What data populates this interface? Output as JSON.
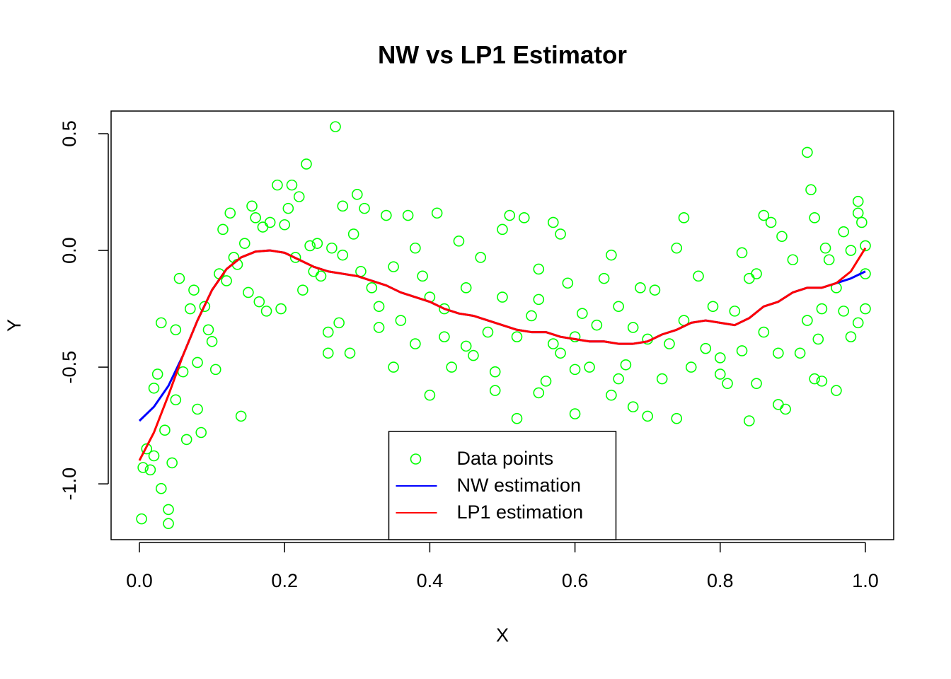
{
  "chart_data": {
    "type": "scatter",
    "title": "NW vs LP1 Estimator",
    "xlabel": "X",
    "ylabel": "Y",
    "xlim": [
      -0.039,
      1.039
    ],
    "ylim": [
      -1.239,
      0.597
    ],
    "xticks": [
      {
        "value": 0,
        "label": "0.0"
      },
      0.2,
      0.4,
      0.6,
      0.8,
      {
        "value": 1,
        "label": "1.0"
      }
    ],
    "yticks": [
      {
        "value": -1,
        "label": "-1.0"
      },
      -0.5,
      {
        "value": 0,
        "label": "0.0"
      },
      0.5
    ],
    "legend": "bottom",
    "series": [
      {
        "name": "Data points",
        "type": "scatter",
        "color": "#00ff00",
        "x": [
          0.003,
          0.005,
          0.01,
          0.015,
          0.02,
          0.02,
          0.025,
          0.03,
          0.03,
          0.035,
          0.04,
          0.04,
          0.045,
          0.05,
          0.05,
          0.055,
          0.06,
          0.065,
          0.07,
          0.075,
          0.08,
          0.08,
          0.085,
          0.09,
          0.095,
          0.1,
          0.105,
          0.11,
          0.115,
          0.12,
          0.125,
          0.13,
          0.135,
          0.14,
          0.145,
          0.15,
          0.155,
          0.16,
          0.165,
          0.17,
          0.175,
          0.18,
          0.19,
          0.195,
          0.2,
          0.205,
          0.21,
          0.215,
          0.22,
          0.225,
          0.23,
          0.235,
          0.24,
          0.245,
          0.25,
          0.26,
          0.265,
          0.27,
          0.275,
          0.28,
          0.29,
          0.295,
          0.3,
          0.305,
          0.31,
          0.32,
          0.33,
          0.34,
          0.35,
          0.36,
          0.37,
          0.38,
          0.39,
          0.4,
          0.41,
          0.42,
          0.43,
          0.44,
          0.45,
          0.46,
          0.47,
          0.48,
          0.49,
          0.5,
          0.51,
          0.52,
          0.53,
          0.54,
          0.55,
          0.56,
          0.57,
          0.58,
          0.59,
          0.6,
          0.61,
          0.62,
          0.63,
          0.64,
          0.65,
          0.66,
          0.67,
          0.68,
          0.69,
          0.7,
          0.71,
          0.72,
          0.73,
          0.74,
          0.75,
          0.76,
          0.77,
          0.78,
          0.79,
          0.8,
          0.81,
          0.82,
          0.83,
          0.84,
          0.85,
          0.86,
          0.87,
          0.88,
          0.89,
          0.9,
          0.91,
          0.92,
          0.93,
          0.94,
          0.95,
          0.96,
          0.97,
          0.98,
          0.99,
          1.0,
          0.52,
          0.55,
          0.6,
          0.65,
          0.57,
          0.58,
          0.66,
          0.7,
          0.74,
          0.75,
          0.83,
          0.86,
          0.885,
          0.92,
          0.925,
          0.93,
          0.935,
          0.94,
          0.945,
          0.96,
          0.97,
          0.98,
          0.99,
          0.99,
          0.995,
          1.0,
          1.0,
          0.5,
          0.49,
          0.4,
          0.38,
          0.33,
          0.35,
          0.28,
          0.26,
          0.45,
          0.42,
          0.55,
          0.6,
          0.68,
          0.8,
          0.84,
          0.85,
          0.88
        ],
        "values": [
          -1.15,
          -0.93,
          -0.85,
          -0.94,
          -0.59,
          -0.88,
          -0.53,
          -0.31,
          -1.02,
          -0.77,
          -1.17,
          -1.11,
          -0.91,
          -0.34,
          -0.64,
          -0.12,
          -0.52,
          -0.81,
          -0.25,
          -0.17,
          -0.48,
          -0.68,
          -0.78,
          -0.24,
          -0.34,
          -0.39,
          -0.51,
          -0.1,
          0.09,
          -0.13,
          0.16,
          -0.03,
          -0.06,
          -0.71,
          0.03,
          -0.18,
          0.19,
          0.14,
          -0.22,
          0.1,
          -0.26,
          0.12,
          0.28,
          -0.25,
          0.11,
          0.18,
          0.28,
          -0.03,
          0.23,
          -0.17,
          0.37,
          0.02,
          -0.09,
          0.03,
          -0.11,
          -0.35,
          0.01,
          0.53,
          -0.31,
          -0.02,
          -0.44,
          0.07,
          0.24,
          -0.09,
          0.18,
          -0.16,
          -0.24,
          0.15,
          -0.07,
          -0.3,
          0.15,
          -0.4,
          -0.11,
          -0.2,
          0.16,
          -0.25,
          -0.5,
          0.04,
          -0.16,
          -0.45,
          -0.03,
          -0.35,
          -0.52,
          -0.2,
          0.15,
          -0.37,
          0.14,
          -0.28,
          -0.08,
          -0.56,
          -0.4,
          -0.44,
          -0.14,
          -0.51,
          -0.27,
          -0.5,
          -0.32,
          -0.12,
          -0.62,
          -0.24,
          -0.49,
          -0.33,
          -0.16,
          -0.38,
          -0.17,
          -0.55,
          -0.4,
          -0.72,
          -0.3,
          -0.5,
          -0.11,
          -0.42,
          -0.24,
          -0.53,
          -0.57,
          -0.26,
          -0.43,
          -0.12,
          -0.1,
          -0.35,
          0.12,
          -0.44,
          -0.68,
          -0.04,
          -0.44,
          -0.3,
          -0.55,
          -0.25,
          -0.04,
          -0.6,
          -0.26,
          0.0,
          -0.31,
          -0.1,
          -0.72,
          -0.61,
          -0.7,
          -0.02,
          0.12,
          0.07,
          -0.55,
          -0.71,
          0.01,
          0.14,
          -0.01,
          0.15,
          0.06,
          0.42,
          0.26,
          0.14,
          -0.38,
          -0.56,
          0.01,
          -0.16,
          0.08,
          -0.37,
          0.21,
          0.16,
          0.12,
          -0.25,
          0.02,
          0.09,
          -0.6,
          -0.62,
          0.01,
          -0.33,
          -0.5,
          0.19,
          -0.44,
          -0.41,
          -0.37,
          -0.21,
          -0.37,
          -0.67,
          -0.46,
          -0.73,
          -0.57,
          -0.66
        ]
      },
      {
        "name": "NW estimation",
        "type": "line",
        "color": "#0000ff",
        "x": [
          0,
          0.02,
          0.04,
          0.06,
          0.08,
          0.1,
          0.12,
          0.14,
          0.16,
          0.18,
          0.2,
          0.22,
          0.24,
          0.26,
          0.28,
          0.3,
          0.32,
          0.34,
          0.36,
          0.38,
          0.4,
          0.42,
          0.44,
          0.46,
          0.48,
          0.5,
          0.52,
          0.54,
          0.56,
          0.58,
          0.6,
          0.62,
          0.64,
          0.66,
          0.68,
          0.7,
          0.72,
          0.74,
          0.76,
          0.78,
          0.8,
          0.82,
          0.84,
          0.86,
          0.88,
          0.9,
          0.92,
          0.94,
          0.96,
          0.98,
          1.0
        ],
        "values": [
          -0.73,
          -0.67,
          -0.58,
          -0.45,
          -0.3,
          -0.17,
          -0.08,
          -0.03,
          -0.005,
          0,
          -0.01,
          -0.04,
          -0.07,
          -0.09,
          -0.1,
          -0.11,
          -0.13,
          -0.15,
          -0.18,
          -0.2,
          -0.22,
          -0.25,
          -0.27,
          -0.28,
          -0.3,
          -0.32,
          -0.34,
          -0.35,
          -0.35,
          -0.37,
          -0.38,
          -0.39,
          -0.39,
          -0.4,
          -0.4,
          -0.39,
          -0.36,
          -0.34,
          -0.31,
          -0.3,
          -0.31,
          -0.32,
          -0.29,
          -0.24,
          -0.22,
          -0.18,
          -0.16,
          -0.16,
          -0.14,
          -0.12,
          -0.09
        ]
      },
      {
        "name": "LP1 estimation",
        "type": "line",
        "color": "#ff0000",
        "x": [
          0,
          0.02,
          0.04,
          0.06,
          0.08,
          0.1,
          0.12,
          0.14,
          0.16,
          0.18,
          0.2,
          0.22,
          0.24,
          0.26,
          0.28,
          0.3,
          0.32,
          0.34,
          0.36,
          0.38,
          0.4,
          0.42,
          0.44,
          0.46,
          0.48,
          0.5,
          0.52,
          0.54,
          0.56,
          0.58,
          0.6,
          0.62,
          0.64,
          0.66,
          0.68,
          0.7,
          0.72,
          0.74,
          0.76,
          0.78,
          0.8,
          0.82,
          0.84,
          0.86,
          0.88,
          0.9,
          0.92,
          0.94,
          0.96,
          0.98,
          1.0
        ],
        "values": [
          -0.9,
          -0.78,
          -0.62,
          -0.45,
          -0.3,
          -0.17,
          -0.08,
          -0.03,
          -0.005,
          0,
          -0.01,
          -0.04,
          -0.07,
          -0.09,
          -0.1,
          -0.11,
          -0.13,
          -0.15,
          -0.18,
          -0.2,
          -0.22,
          -0.25,
          -0.27,
          -0.28,
          -0.3,
          -0.32,
          -0.34,
          -0.35,
          -0.35,
          -0.37,
          -0.38,
          -0.39,
          -0.39,
          -0.4,
          -0.4,
          -0.39,
          -0.36,
          -0.34,
          -0.31,
          -0.3,
          -0.31,
          -0.32,
          -0.29,
          -0.24,
          -0.22,
          -0.18,
          -0.16,
          -0.16,
          -0.14,
          -0.09,
          0.01
        ]
      }
    ]
  }
}
